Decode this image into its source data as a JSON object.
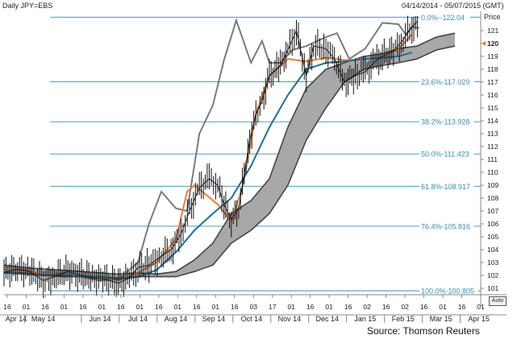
{
  "header": {
    "symbol": "Daily JPY=EBS",
    "date_range": "04/14/2014 - 05/07/2015 (GMT)"
  },
  "footer": {
    "source": "Source: Thomson Reuters",
    "auto_label": "Auto"
  },
  "chart_data": {
    "type": "line",
    "ylabel": "Price",
    "ylim": [
      100.5,
      122.5
    ],
    "last_price": 120,
    "y_ticks": [
      101,
      102,
      103,
      104,
      105,
      106,
      107,
      108,
      109,
      110,
      111,
      112,
      113,
      114,
      115,
      116,
      117,
      118,
      119,
      120,
      121
    ],
    "fib_levels": [
      {
        "label": "0.0%--122.04",
        "value": 122.04
      },
      {
        "label": "23.6%-117.029",
        "value": 117.029
      },
      {
        "label": "38.2%-113.928",
        "value": 113.928
      },
      {
        "label": "50.0%-111.423",
        "value": 111.423
      },
      {
        "label": "61.8%-108.917",
        "value": 108.917
      },
      {
        "label": "76.4%-105.816",
        "value": 105.816
      },
      {
        "label": "100.0%-100.805",
        "value": 100.805
      }
    ],
    "x_day_ticks": [
      "16",
      "01",
      "16",
      "01",
      "16",
      "01",
      "16",
      "01",
      "16",
      "01",
      "16",
      "01",
      "16",
      "03",
      "17",
      "01",
      "16",
      "01",
      "16",
      "02",
      "16",
      "02",
      "16",
      "01",
      "16",
      "01"
    ],
    "x_month_labels": [
      "Apr 14",
      "May 14",
      "Jun 14",
      "Jul 14",
      "Aug 14",
      "Sep 14",
      "Oct 14",
      "Nov 14",
      "Dec 14",
      "Jan 15",
      "Feb 15",
      "Mar 15",
      "Apr 15"
    ],
    "x_range": [
      "2014-04-14",
      "2015-05-07"
    ],
    "series": [
      {
        "color": "#7a7a7a",
        "points": [
          [
            "2014-04-14",
            102.3
          ],
          [
            "2014-05-01",
            102.4
          ],
          [
            "2014-05-16",
            102.0
          ],
          [
            "2014-06-02",
            102.2
          ],
          [
            "2014-06-16",
            101.9
          ],
          [
            "2014-07-01",
            101.6
          ],
          [
            "2014-07-16",
            101.7
          ],
          [
            "2014-08-01",
            103.0
          ],
          [
            "2014-08-10",
            106.0
          ],
          [
            "2014-08-20",
            108.5
          ],
          [
            "2014-09-01",
            107.2
          ],
          [
            "2014-09-10",
            107.0
          ],
          [
            "2014-09-20",
            113.0
          ],
          [
            "2014-10-01",
            115.2
          ],
          [
            "2014-10-10",
            118.7
          ],
          [
            "2014-10-20",
            121.8
          ],
          [
            "2014-11-01",
            118.5
          ],
          [
            "2014-11-10",
            120.2
          ],
          [
            "2014-11-16",
            118.5
          ],
          [
            "2014-11-25",
            118.5
          ],
          [
            "2014-12-05",
            119.5
          ],
          [
            "2014-12-16",
            119.8
          ],
          [
            "2015-01-01",
            120.5
          ],
          [
            "2015-01-10",
            120.8
          ],
          [
            "2015-01-20",
            118.8
          ],
          [
            "2015-02-02",
            119.6
          ],
          [
            "2015-02-16",
            121.6
          ],
          [
            "2015-03-01",
            121.5
          ],
          [
            "2015-03-07",
            120.7
          ],
          [
            "2015-03-16",
            121.7
          ]
        ]
      },
      {
        "color": "#e8803a",
        "points": [
          [
            "2014-04-14",
            102.3
          ],
          [
            "2014-05-01",
            102.3
          ],
          [
            "2014-05-16",
            102.1
          ],
          [
            "2014-06-01",
            102.0
          ],
          [
            "2014-06-16",
            101.9
          ],
          [
            "2014-07-01",
            101.8
          ],
          [
            "2014-07-16",
            101.6
          ],
          [
            "2014-08-01",
            102.2
          ],
          [
            "2014-08-16",
            103.0
          ],
          [
            "2014-09-01",
            104.8
          ],
          [
            "2014-09-10",
            108.5
          ],
          [
            "2014-09-16",
            109.0
          ],
          [
            "2014-09-25",
            108.3
          ],
          [
            "2014-10-05",
            107.5
          ],
          [
            "2014-10-16",
            106.2
          ],
          [
            "2014-10-25",
            108.8
          ],
          [
            "2014-11-05",
            114.5
          ],
          [
            "2014-11-16",
            117.5
          ],
          [
            "2014-12-01",
            118.8
          ],
          [
            "2014-12-16",
            118.6
          ],
          [
            "2015-01-01",
            118.9
          ],
          [
            "2015-01-16",
            118.7
          ],
          [
            "2015-02-01",
            118.8
          ],
          [
            "2015-02-16",
            118.9
          ],
          [
            "2015-03-01",
            119.6
          ],
          [
            "2015-03-12",
            120.7
          ]
        ]
      },
      {
        "color": "#1f6e99",
        "points": [
          [
            "2014-04-14",
            102.2
          ],
          [
            "2014-05-01",
            102.1
          ],
          [
            "2014-05-16",
            102.0
          ],
          [
            "2014-06-01",
            102.0
          ],
          [
            "2014-06-16",
            101.9
          ],
          [
            "2014-07-01",
            101.9
          ],
          [
            "2014-07-16",
            101.7
          ],
          [
            "2014-08-01",
            101.9
          ],
          [
            "2014-08-16",
            102.4
          ],
          [
            "2014-09-01",
            103.8
          ],
          [
            "2014-09-16",
            105.5
          ],
          [
            "2014-10-01",
            106.8
          ],
          [
            "2014-10-16",
            108.0
          ],
          [
            "2014-11-01",
            110.5
          ],
          [
            "2014-11-16",
            113.5
          ],
          [
            "2014-12-01",
            116.0
          ],
          [
            "2014-12-16",
            118.0
          ],
          [
            "2015-01-01",
            118.5
          ],
          [
            "2015-01-16",
            118.6
          ],
          [
            "2015-02-01",
            118.8
          ],
          [
            "2015-02-16",
            118.9
          ],
          [
            "2015-03-01",
            119.0
          ],
          [
            "2015-03-12",
            119.3
          ]
        ]
      }
    ],
    "cloud": [
      [
        "2014-04-14",
        102.2,
        102.8
      ],
      [
        "2014-05-01",
        102.2,
        102.6
      ],
      [
        "2014-05-16",
        102.0,
        102.5
      ],
      [
        "2014-06-01",
        101.9,
        102.4
      ],
      [
        "2014-06-16",
        101.9,
        102.3
      ],
      [
        "2014-07-01",
        101.8,
        102.2
      ],
      [
        "2014-07-16",
        101.8,
        102.1
      ],
      [
        "2014-08-01",
        101.9,
        102.2
      ],
      [
        "2014-08-16",
        101.9,
        102.1
      ],
      [
        "2014-09-01",
        101.9,
        102.3
      ],
      [
        "2014-09-16",
        102.3,
        103.2
      ],
      [
        "2014-10-01",
        102.8,
        104.5
      ],
      [
        "2014-10-16",
        104.5,
        106.8
      ],
      [
        "2014-11-01",
        105.5,
        107.8
      ],
      [
        "2014-11-16",
        106.8,
        109.5
      ],
      [
        "2014-12-01",
        109.0,
        113.5
      ],
      [
        "2014-12-16",
        112.5,
        116.5
      ],
      [
        "2015-01-01",
        115.0,
        118.0
      ],
      [
        "2015-01-16",
        117.0,
        118.5
      ],
      [
        "2015-02-01",
        118.0,
        119.0
      ],
      [
        "2015-02-16",
        118.3,
        119.2
      ],
      [
        "2015-03-01",
        118.5,
        119.6
      ],
      [
        "2015-03-16",
        118.8,
        119.8
      ],
      [
        "2015-04-01",
        119.5,
        120.5
      ],
      [
        "2015-04-16",
        119.8,
        120.8
      ]
    ],
    "price": [
      [
        "2014-04-14",
        102.2
      ],
      [
        "2014-04-25",
        102.5
      ],
      [
        "2014-05-05",
        102.3
      ],
      [
        "2014-05-16",
        101.6
      ],
      [
        "2014-05-25",
        101.9
      ],
      [
        "2014-06-05",
        102.3
      ],
      [
        "2014-06-16",
        102.0
      ],
      [
        "2014-06-25",
        101.8
      ],
      [
        "2014-07-05",
        101.7
      ],
      [
        "2014-07-16",
        101.4
      ],
      [
        "2014-07-25",
        101.8
      ],
      [
        "2014-08-01",
        102.6
      ],
      [
        "2014-08-10",
        102.8
      ],
      [
        "2014-08-20",
        103.5
      ],
      [
        "2014-08-28",
        104.0
      ],
      [
        "2014-09-05",
        105.2
      ],
      [
        "2014-09-12",
        107.0
      ],
      [
        "2014-09-20",
        108.8
      ],
      [
        "2014-09-28",
        109.5
      ],
      [
        "2014-10-05",
        109.0
      ],
      [
        "2014-10-10",
        107.5
      ],
      [
        "2014-10-16",
        106.3
      ],
      [
        "2014-10-22",
        107.2
      ],
      [
        "2014-10-31",
        112.5
      ],
      [
        "2014-11-05",
        114.5
      ],
      [
        "2014-11-10",
        115.5
      ],
      [
        "2014-11-16",
        117.5
      ],
      [
        "2014-11-25",
        118.3
      ],
      [
        "2014-12-01",
        119.5
      ],
      [
        "2014-12-08",
        121.0
      ],
      [
        "2014-12-16",
        117.5
      ],
      [
        "2014-12-22",
        119.8
      ],
      [
        "2015-01-01",
        119.6
      ],
      [
        "2015-01-08",
        118.8
      ],
      [
        "2015-01-16",
        117.0
      ],
      [
        "2015-01-25",
        117.5
      ],
      [
        "2015-02-02",
        117.8
      ],
      [
        "2015-02-10",
        118.6
      ],
      [
        "2015-02-16",
        119.0
      ],
      [
        "2015-02-25",
        119.4
      ],
      [
        "2015-03-05",
        120.3
      ],
      [
        "2015-03-12",
        121.3
      ],
      [
        "2015-03-18",
        121.2
      ]
    ]
  }
}
